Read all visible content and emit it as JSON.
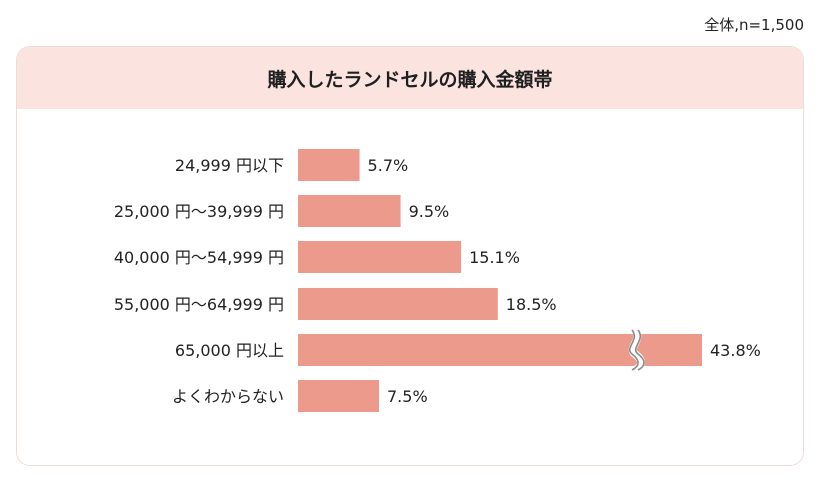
{
  "note": "全体,n=1,500",
  "chart_data": {
    "type": "bar",
    "orientation": "horizontal",
    "title": "購入したランドセルの購入金額帯",
    "categories": [
      "24,999 円以下",
      "25,000 円〜39,999 円",
      "40,000 円〜54,999 円",
      "55,000 円〜64,999 円",
      "65,000 円以上",
      "よくわからない"
    ],
    "values": [
      5.7,
      9.5,
      15.1,
      18.5,
      43.8,
      7.5
    ],
    "value_labels": [
      "5.7%",
      "9.5%",
      "15.1%",
      "18.5%",
      "43.8%",
      "7.5%"
    ],
    "axis_break_category": "65,000 円以上",
    "bar_color": "#ec9a8b",
    "header_color": "#fbe4df"
  }
}
